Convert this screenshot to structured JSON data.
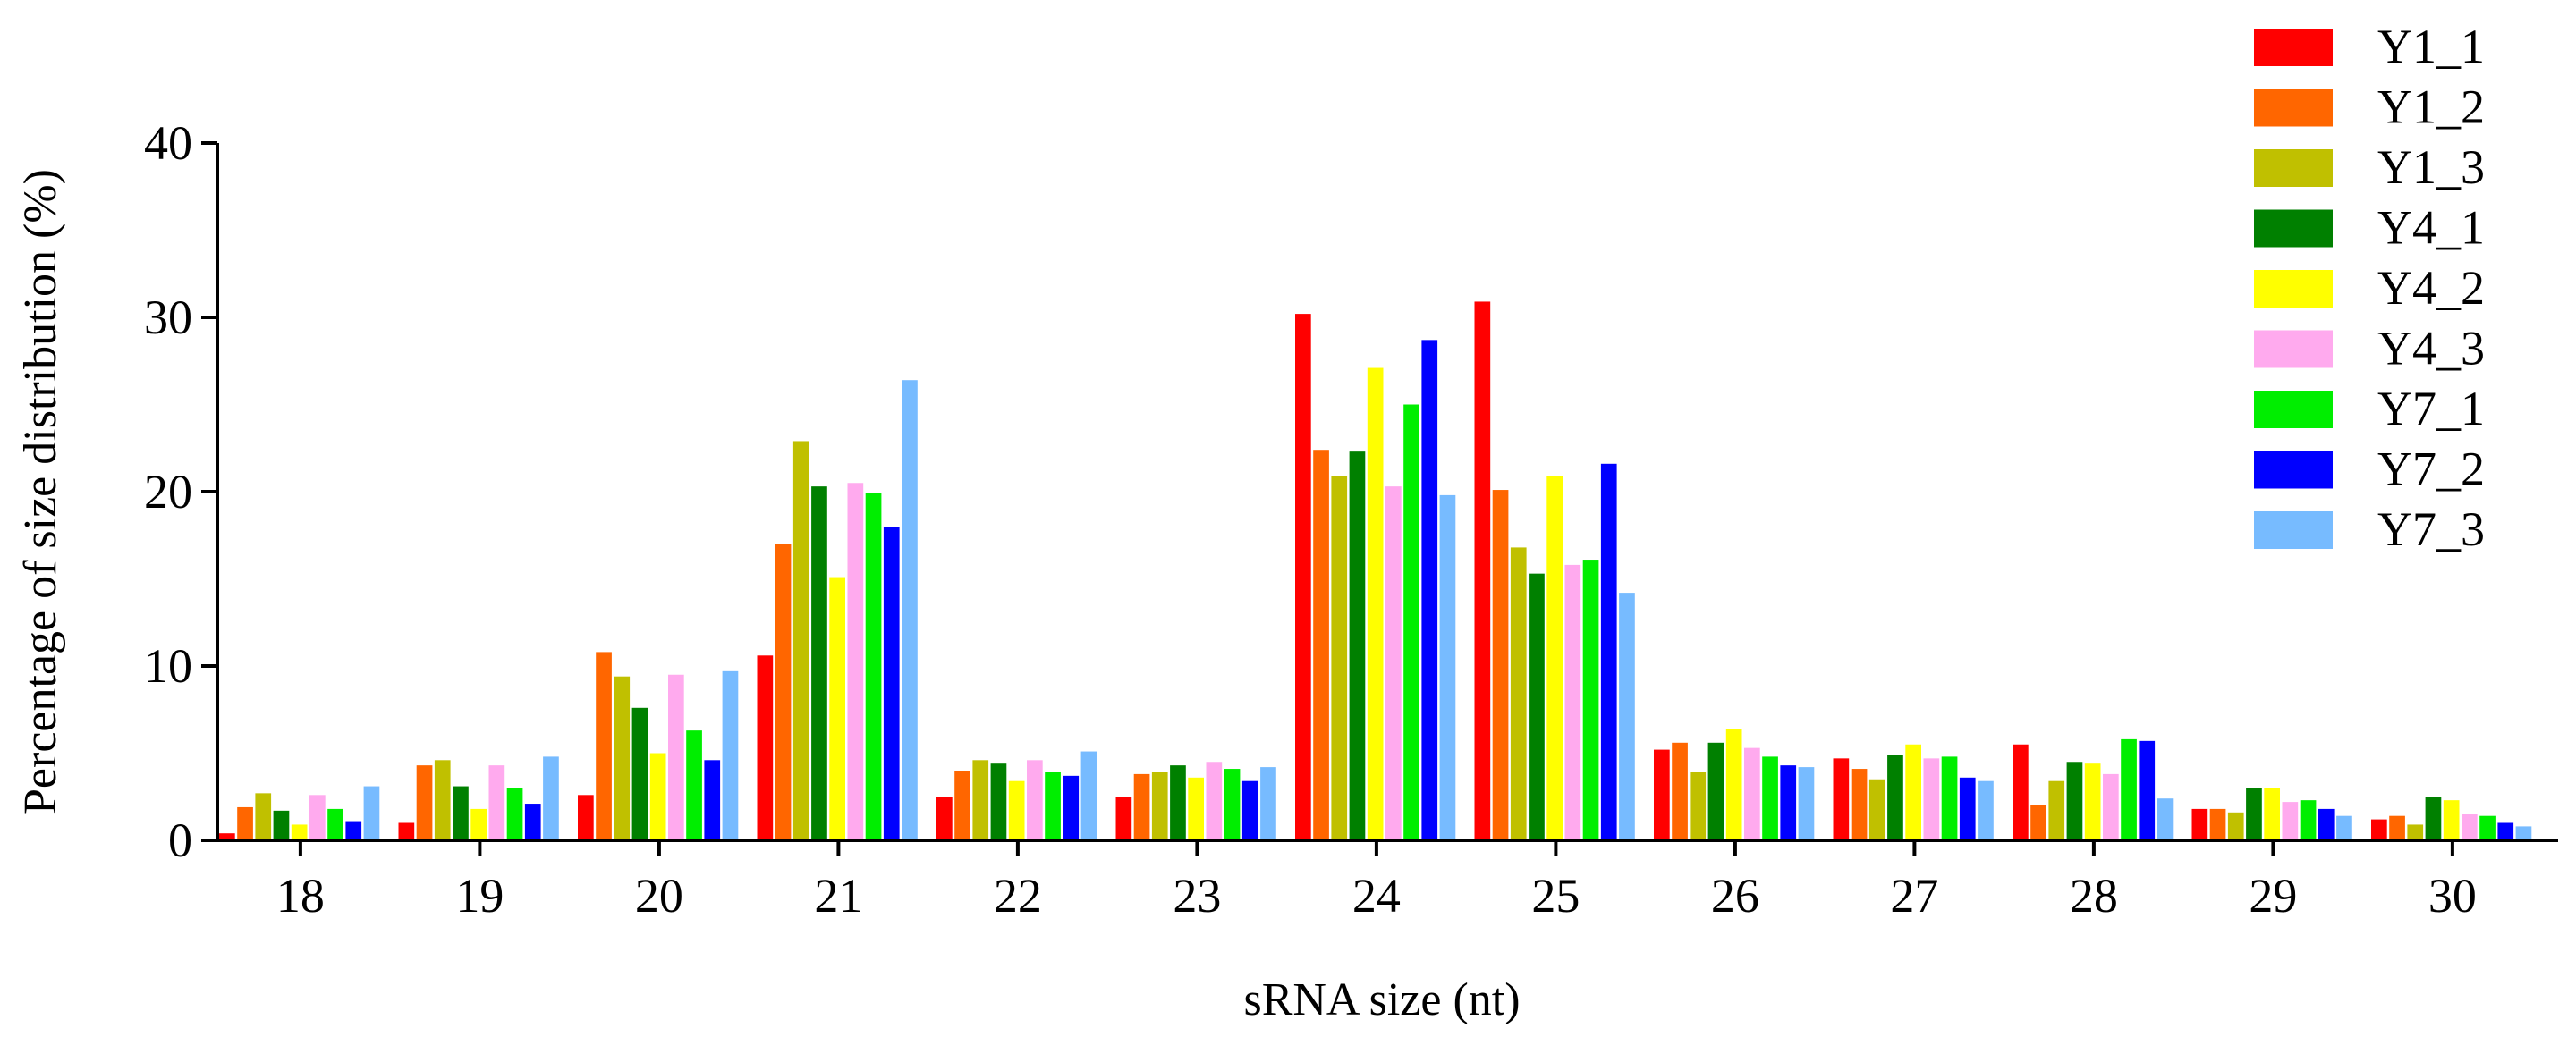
{
  "chart_data": {
    "type": "bar",
    "title": "",
    "xlabel": "sRNA size (nt)",
    "ylabel": "Percentage of size distribution (%)",
    "ylim": [
      0,
      40
    ],
    "yticks": [
      "0",
      "10",
      "20",
      "30",
      "40"
    ],
    "categories": [
      "18",
      "19",
      "20",
      "21",
      "22",
      "23",
      "24",
      "25",
      "26",
      "27",
      "28",
      "29",
      "30"
    ],
    "legend_position": "top-right",
    "series": [
      {
        "name": "Y1_1",
        "color": "#ff0000",
        "values": [
          0.4,
          1.0,
          2.6,
          10.6,
          2.5,
          2.5,
          30.2,
          30.9,
          5.2,
          4.7,
          5.5,
          1.8,
          1.2
        ]
      },
      {
        "name": "Y1_2",
        "color": "#ff6600",
        "values": [
          1.9,
          4.3,
          10.8,
          17.0,
          4.0,
          3.8,
          22.4,
          20.1,
          5.6,
          4.1,
          2.0,
          1.8,
          1.4
        ]
      },
      {
        "name": "Y1_3",
        "color": "#c0c000",
        "values": [
          2.7,
          4.6,
          9.4,
          22.9,
          4.6,
          3.9,
          20.9,
          16.8,
          3.9,
          3.5,
          3.4,
          1.6,
          0.9
        ]
      },
      {
        "name": "Y4_1",
        "color": "#008000",
        "values": [
          1.7,
          3.1,
          7.6,
          20.3,
          4.4,
          4.3,
          22.3,
          15.3,
          5.6,
          4.9,
          4.5,
          3.0,
          2.5
        ]
      },
      {
        "name": "Y4_2",
        "color": "#ffff00",
        "values": [
          0.9,
          1.8,
          5.0,
          15.1,
          3.4,
          3.6,
          27.1,
          20.9,
          6.4,
          5.5,
          4.4,
          3.0,
          2.3
        ]
      },
      {
        "name": "Y4_3",
        "color": "#ffaaee",
        "values": [
          2.6,
          4.3,
          9.5,
          20.5,
          4.6,
          4.5,
          20.3,
          15.8,
          5.3,
          4.7,
          3.8,
          2.2,
          1.5
        ]
      },
      {
        "name": "Y7_1",
        "color": "#00ee00",
        "values": [
          1.8,
          3.0,
          6.3,
          19.9,
          3.9,
          4.1,
          25.0,
          16.1,
          4.8,
          4.8,
          5.8,
          2.3,
          1.4
        ]
      },
      {
        "name": "Y7_2",
        "color": "#0000ff",
        "values": [
          1.1,
          2.1,
          4.6,
          18.0,
          3.7,
          3.4,
          28.7,
          21.6,
          4.3,
          3.6,
          5.7,
          1.8,
          1.0
        ]
      },
      {
        "name": "Y7_3",
        "color": "#77bbff",
        "values": [
          3.1,
          4.8,
          9.7,
          26.4,
          5.1,
          4.2,
          19.8,
          14.2,
          4.2,
          3.4,
          2.4,
          1.4,
          0.8
        ]
      }
    ]
  }
}
